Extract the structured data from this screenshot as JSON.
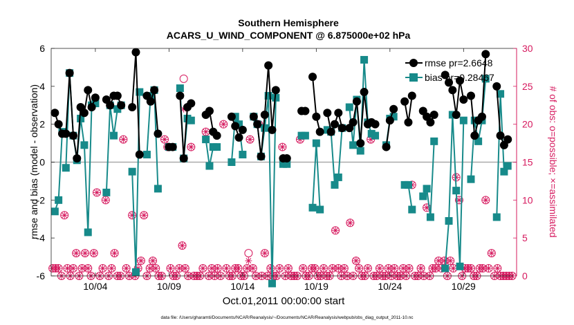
{
  "figure": {
    "footnote": "data file: /Users/gharamti/Documents/NCAR/Reanalysis/~/Documents/NCAR/Reanalysis/webpub/obs_diag_output_2011-10.nc"
  },
  "colors": {
    "rmse": "#000000",
    "bias": "#178a8a",
    "obs": "#d6195e",
    "zero_line": "#aaaaaa"
  },
  "chart_data": {
    "type": "line",
    "title": "Southern Hemisphere",
    "subtitle": "ACARS_U_WIND_COMPONENT @ 6.875000e+02 hPa",
    "xlabel": "Oct.01,2011 00:00:00 start",
    "ylabel": "rmse and bias (model - observation)",
    "y2label": "# of obs: o=possible; ×=assimilated",
    "xlim": [
      0,
      31.6
    ],
    "ylim": [
      -6,
      6
    ],
    "y2lim": [
      0,
      30
    ],
    "x_ticks": [
      3,
      8,
      13,
      18,
      23,
      28
    ],
    "x_tick_labels": [
      "10/04",
      "10/09",
      "10/14",
      "10/19",
      "10/24",
      "10/29"
    ],
    "y_ticks": [
      -6,
      -4,
      -2,
      0,
      2,
      4,
      6
    ],
    "y_tick_labels": [
      "-6",
      "-4",
      "-2",
      "0",
      "2",
      "4",
      "6"
    ],
    "y2_ticks": [
      0,
      5,
      10,
      15,
      20,
      25,
      30
    ],
    "y2_tick_labels": [
      "0",
      "5",
      "10",
      "15",
      "20",
      "25",
      "30"
    ],
    "legend": {
      "position": "top-right",
      "entries": [
        "rmse pr=2.6648",
        "bias pr=0.28467"
      ]
    },
    "series": [
      {
        "name": "rmse",
        "segments": [
          {
            "x": [
              0.25,
              0.5,
              0.75
            ],
            "y": [
              2.6,
              2.0,
              1.5
            ]
          },
          {
            "x": [
              1.0,
              1.25,
              1.5,
              1.75,
              2.0,
              2.25,
              2.5,
              2.75,
              3.0
            ],
            "y": [
              1.5,
              4.7,
              1.4,
              0.2,
              2.9,
              2.6,
              3.8,
              2.9,
              3.4
            ]
          },
          {
            "x": [
              3.75,
              4.0,
              4.25,
              4.5,
              4.75
            ],
            "y": [
              3.3,
              3.0,
              3.5,
              3.5,
              3.0
            ]
          },
          {
            "x": [
              5.5,
              5.75,
              6.0
            ],
            "y": [
              2.9,
              5.8,
              0.4
            ]
          },
          {
            "x": [
              6.5,
              6.75,
              7.0,
              7.25
            ],
            "y": [
              3.5,
              3.2,
              3.8,
              1.5
            ]
          },
          {
            "x": [
              8.0,
              8.25
            ],
            "y": [
              0.8,
              0.8
            ]
          },
          {
            "x": [
              8.75,
              9.0,
              9.25,
              9.5
            ],
            "y": [
              3.5,
              0.2,
              2.9,
              3.1
            ]
          },
          {
            "x": [
              10.5,
              10.75,
              11.0,
              11.25
            ],
            "y": [
              2.5,
              2.7,
              1.6,
              1.4
            ]
          },
          {
            "x": [
              12.25,
              12.5,
              12.75,
              13.0
            ],
            "y": [
              2.4,
              1.9,
              1.3,
              1.7
            ]
          },
          {
            "x": [
              13.75,
              14.0,
              14.25,
              14.5,
              14.75,
              15.0,
              15.25
            ],
            "y": [
              2.4,
              2.0,
              0.3,
              2.5,
              5.1,
              1.7,
              3.8
            ]
          },
          {
            "x": [
              15.75,
              16.0
            ],
            "y": [
              0.2,
              0.2
            ]
          },
          {
            "x": [
              17.0,
              17.25
            ],
            "y": [
              2.7,
              2.7
            ]
          },
          {
            "x": [
              17.75,
              18.0,
              18.25
            ],
            "y": [
              4.5,
              2.4,
              1.6
            ]
          },
          {
            "x": [
              18.75,
              19.0,
              19.25,
              19.5,
              19.75
            ],
            "y": [
              2.6,
              1.6,
              2.0,
              2.6,
              1.8
            ]
          },
          {
            "x": [
              20.25,
              20.5,
              20.75,
              21.0,
              21.25,
              21.5,
              21.75,
              22.0
            ],
            "y": [
              1.8,
              2.1,
              3.2,
              1.0,
              3.7,
              2.0,
              2.1,
              2.0
            ]
          },
          {
            "x": [
              22.75,
              23.0,
              23.25
            ],
            "y": [
              0.8,
              2.2,
              2.8
            ]
          },
          {
            "x": [
              24.0,
              24.25,
              24.5
            ],
            "y": [
              3.2,
              2.1,
              3.5
            ]
          },
          {
            "x": [
              25.25,
              25.5,
              25.75,
              26.0
            ],
            "y": [
              2.7,
              2.4,
              2.1,
              2.5
            ]
          },
          {
            "x": [
              26.75,
              27.0,
              27.25,
              27.5,
              27.75,
              28.0
            ],
            "y": [
              4.6,
              4.2,
              3.8,
              2.5,
              4.3,
              3.3
            ]
          },
          {
            "x": [
              28.5,
              28.75,
              29.0,
              29.25,
              29.5
            ],
            "y": [
              3.5,
              1.4,
              2.2,
              2.4,
              5.7
            ]
          },
          {
            "x": [
              30.25,
              30.5,
              30.75,
              31.0
            ],
            "y": [
              4.0,
              1.4,
              0.9,
              1.2
            ]
          }
        ]
      },
      {
        "name": "bias",
        "segments": [
          {
            "x": [
              0.25,
              0.5,
              0.75
            ],
            "y": [
              -2.6,
              -2.0,
              1.6
            ]
          },
          {
            "x": [
              1.0,
              1.25,
              1.5,
              1.75,
              2.0,
              2.25,
              2.5,
              2.75,
              3.0
            ],
            "y": [
              -0.3,
              4.7,
              1.4,
              0.1,
              2.3,
              0.9,
              -3.7,
              3.0,
              3.1
            ]
          },
          {
            "x": [
              3.75,
              4.0,
              4.25,
              4.5,
              4.75
            ],
            "y": [
              -1.6,
              3.0,
              1.4,
              2.8,
              3.0
            ]
          },
          {
            "x": [
              5.5,
              5.75,
              6.0
            ],
            "y": [
              -0.5,
              -5.8,
              3.7
            ]
          },
          {
            "x": [
              6.5,
              6.75,
              7.0,
              7.25
            ],
            "y": [
              0.4,
              3.5,
              3.8,
              -1.4
            ]
          },
          {
            "x": [
              8.0,
              8.25
            ],
            "y": [
              0.8,
              0.8
            ]
          },
          {
            "x": [
              8.75,
              9.0,
              9.25,
              9.5
            ],
            "y": [
              3.9,
              0.2,
              2.3,
              2.2
            ]
          },
          {
            "x": [
              10.5,
              10.75,
              11.0,
              11.25
            ],
            "y": [
              1.2,
              -0.2,
              0.8,
              0.8
            ]
          },
          {
            "x": [
              12.25,
              12.5,
              12.75,
              13.0
            ],
            "y": [
              0.0,
              2.4,
              2.0,
              0.4
            ]
          },
          {
            "x": [
              13.75,
              14.0,
              14.25,
              14.5,
              14.75,
              15.0,
              15.25
            ],
            "y": [
              2.4,
              2.0,
              0.3,
              1.8,
              3.5,
              -6.4,
              3.4
            ]
          },
          {
            "x": [
              15.75,
              16.0
            ],
            "y": [
              -0.1,
              -0.1
            ]
          },
          {
            "x": [
              17.0,
              17.25
            ],
            "y": [
              1.4,
              1.4
            ]
          },
          {
            "x": [
              17.75,
              18.0,
              18.25
            ],
            "y": [
              -2.4,
              1.0,
              -2.5
            ]
          },
          {
            "x": [
              18.75,
              19.0,
              19.25,
              19.5,
              19.75
            ],
            "y": [
              1.7,
              1.6,
              -1.2,
              -0.8,
              1.8
            ]
          },
          {
            "x": [
              20.25,
              20.5,
              20.75,
              21.0,
              21.25,
              21.5,
              21.75,
              22.0
            ],
            "y": [
              2.9,
              0.9,
              3.3,
              0.6,
              5.4,
              2.1,
              1.5,
              1.4
            ]
          },
          {
            "x": [
              22.75,
              23.0,
              23.25
            ],
            "y": [
              0.9,
              2.3,
              2.4
            ]
          },
          {
            "x": [
              24.0,
              24.25,
              24.5
            ],
            "y": [
              -1.2,
              -1.2,
              -2.5
            ]
          },
          {
            "x": [
              25.25,
              25.5,
              25.75,
              26.0
            ],
            "y": [
              -1.8,
              -1.4,
              -2.9,
              1.1
            ]
          },
          {
            "x": [
              26.75,
              27.0,
              27.25,
              27.5,
              27.75,
              28.0
            ],
            "y": [
              -5.6,
              -3.1,
              2.5,
              -1.5,
              -5.5,
              2.2
            ]
          },
          {
            "x": [
              28.5,
              28.75,
              29.0,
              29.25,
              29.5
            ],
            "y": [
              -0.9,
              2.2,
              1.1,
              2.2,
              4.4
            ]
          },
          {
            "x": [
              30.25,
              30.5,
              30.75,
              31.0
            ],
            "y": [
              -2.9,
              3.6,
              -0.5,
              -0.2
            ]
          }
        ]
      },
      {
        "name": "obs_possible_and_assimilated",
        "x": [
          0.1,
          0.3,
          0.5,
          0.7,
          0.9,
          1.1,
          1.3,
          1.5,
          1.7,
          1.9,
          2.1,
          2.3,
          2.5,
          2.7,
          2.9,
          3.1,
          3.3,
          3.5,
          3.7,
          3.9,
          4.1,
          4.3,
          4.5,
          4.7,
          4.9,
          5.1,
          5.3,
          5.5,
          5.7,
          5.9,
          6.1,
          6.3,
          6.5,
          6.7,
          6.9,
          7.1,
          7.3,
          7.5,
          7.7,
          7.9,
          8.1,
          8.3,
          8.5,
          8.7,
          8.9,
          9.1,
          9.3,
          9.5,
          9.7,
          9.9,
          10.1,
          10.3,
          10.5,
          10.7,
          10.9,
          11.1,
          11.3,
          11.5,
          11.7,
          11.9,
          12.1,
          12.3,
          12.5,
          12.7,
          12.9,
          13.1,
          13.3,
          13.5,
          13.7,
          13.9,
          14.1,
          14.3,
          14.5,
          14.7,
          14.9,
          15.1,
          15.3,
          15.5,
          15.7,
          15.9,
          16.1,
          16.3,
          16.5,
          16.7,
          16.9,
          17.1,
          17.3,
          17.5,
          17.7,
          17.9,
          18.1,
          18.3,
          18.5,
          18.7,
          18.9,
          19.1,
          19.3,
          19.5,
          19.7,
          19.9,
          20.1,
          20.3,
          20.5,
          20.7,
          20.9,
          21.1,
          21.3,
          21.5,
          21.7,
          21.9,
          22.1,
          22.3,
          22.5,
          22.7,
          22.9,
          23.1,
          23.3,
          23.5,
          23.7,
          23.9,
          24.1,
          24.3,
          24.5,
          24.7,
          24.9,
          25.1,
          25.3,
          25.5,
          25.7,
          25.9,
          26.1,
          26.3,
          26.5,
          26.7,
          26.9,
          27.1,
          27.3,
          27.5,
          27.7,
          27.9,
          28.1,
          28.3,
          28.5,
          28.7,
          28.9,
          29.1,
          29.3,
          29.5,
          29.7,
          29.9,
          30.1,
          30.3,
          30.5,
          30.7,
          30.9,
          31.1,
          31.3
        ],
        "y": [
          1,
          1,
          1,
          0,
          8,
          1,
          0,
          1,
          3,
          0,
          1,
          3,
          1,
          0,
          3,
          11,
          0,
          1,
          10,
          0,
          1,
          3,
          0,
          0,
          18,
          1,
          0,
          8,
          0,
          1,
          2,
          8,
          0,
          1,
          2,
          1,
          0,
          0,
          18,
          17,
          1,
          0,
          0,
          1,
          4,
          1,
          0,
          17,
          0,
          0,
          0,
          1,
          19,
          0,
          1,
          0,
          1,
          0,
          20,
          1,
          0,
          0,
          1,
          1,
          0,
          0,
          1,
          18,
          1,
          0,
          20,
          0,
          3,
          0,
          1,
          0,
          0,
          1,
          17,
          0,
          1,
          0,
          0,
          0,
          18,
          1,
          0,
          0,
          1,
          1,
          0,
          0,
          1,
          0,
          0,
          1,
          6,
          1,
          0,
          1,
          0,
          7,
          0,
          2,
          1,
          0,
          0,
          1,
          18,
          0,
          0,
          1,
          0,
          0,
          1,
          0,
          1,
          0,
          0,
          1,
          0,
          1,
          12,
          0,
          0,
          1,
          0,
          9,
          0,
          1,
          1,
          2,
          1,
          2,
          0,
          2,
          1,
          13,
          10,
          0,
          1,
          1,
          1,
          0,
          0,
          1,
          1,
          10,
          1,
          3,
          0,
          1,
          0,
          0,
          0,
          0,
          0
        ]
      },
      {
        "name": "obs_possible_only",
        "x": [
          9.0,
          13.4
        ],
        "y": [
          26,
          3
        ]
      },
      {
        "name": "obs_assimilated_only",
        "x": [
          9.0,
          13.4
        ],
        "y": [
          22,
          2
        ]
      }
    ]
  }
}
